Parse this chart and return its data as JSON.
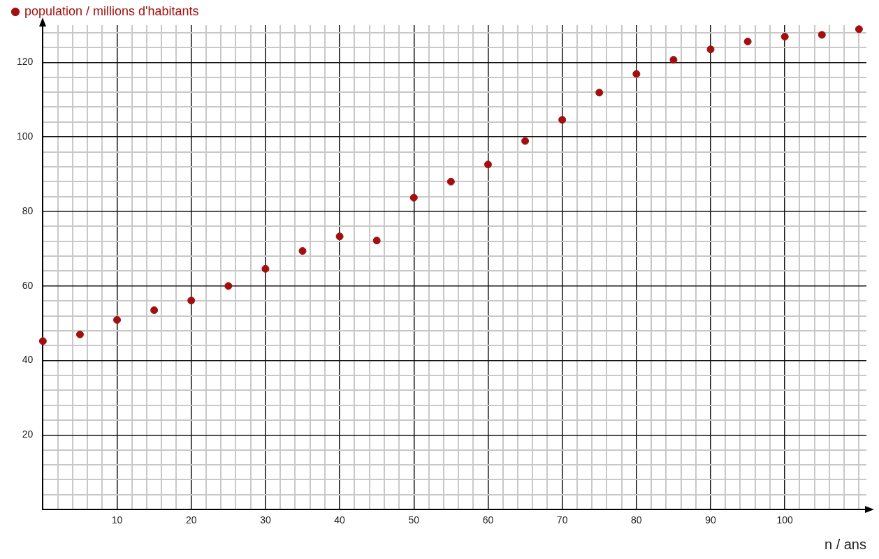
{
  "chart_data": {
    "type": "scatter",
    "xlabel": "n / ans",
    "legend": "top left",
    "grid": true,
    "marker": "circle",
    "x": [
      0,
      5,
      10,
      15,
      20,
      25,
      30,
      35,
      40,
      45,
      50,
      55,
      60,
      65,
      70,
      75,
      80,
      85,
      90,
      95,
      100,
      105,
      110
    ],
    "series": [
      {
        "name": "population / millions d'habitants",
        "color": "#a30f0f",
        "values": [
          45.2,
          47.0,
          50.9,
          53.5,
          56.1,
          60.0,
          64.6,
          69.4,
          73.3,
          72.2,
          83.7,
          88.0,
          92.6,
          98.9,
          104.6,
          111.9,
          116.9,
          120.7,
          123.5,
          125.6,
          126.9,
          127.4,
          128.9
        ]
      }
    ],
    "xlim": [
      0,
      111
    ],
    "ylim": [
      0,
      130
    ],
    "xticks": [
      {
        "value": 0,
        "label": null
      },
      {
        "value": 2,
        "label": null
      },
      {
        "value": 4,
        "label": null
      },
      {
        "value": 6,
        "label": null
      },
      {
        "value": 8,
        "label": null
      },
      10,
      {
        "value": 12,
        "label": null
      },
      {
        "value": 14,
        "label": null
      },
      {
        "value": 16,
        "label": null
      },
      {
        "value": 18,
        "label": null
      },
      20,
      {
        "value": 22,
        "label": null
      },
      {
        "value": 24,
        "label": null
      },
      {
        "value": 26,
        "label": null
      },
      {
        "value": 28,
        "label": null
      },
      30,
      {
        "value": 32,
        "label": null
      },
      {
        "value": 34,
        "label": null
      },
      {
        "value": 36,
        "label": null
      },
      {
        "value": 38,
        "label": null
      },
      40,
      {
        "value": 42,
        "label": null
      },
      {
        "value": 44,
        "label": null
      },
      {
        "value": 46,
        "label": null
      },
      {
        "value": 48,
        "label": null
      },
      50,
      {
        "value": 52,
        "label": null
      },
      {
        "value": 54,
        "label": null
      },
      {
        "value": 56,
        "label": null
      },
      {
        "value": 58,
        "label": null
      },
      60,
      {
        "value": 62,
        "label": null
      },
      {
        "value": 64,
        "label": null
      },
      {
        "value": 66,
        "label": null
      },
      {
        "value": 68,
        "label": null
      },
      70,
      {
        "value": 72,
        "label": null
      },
      {
        "value": 74,
        "label": null
      },
      {
        "value": 76,
        "label": null
      },
      {
        "value": 78,
        "label": null
      },
      80,
      {
        "value": 82,
        "label": null
      },
      {
        "value": 84,
        "label": null
      },
      {
        "value": 86,
        "label": null
      },
      {
        "value": 88,
        "label": null
      },
      90,
      {
        "value": 92,
        "label": null
      },
      {
        "value": 94,
        "label": null
      },
      {
        "value": 96,
        "label": null
      },
      {
        "value": 98,
        "label": null
      },
      100,
      {
        "value": 102,
        "label": null
      },
      {
        "value": 104,
        "label": null
      },
      {
        "value": 106,
        "label": null
      },
      {
        "value": 108,
        "label": null
      },
      {
        "value": 110,
        "label": null
      }
    ],
    "yticks": [
      {
        "value": 0,
        "label": null
      },
      {
        "value": 4,
        "label": null
      },
      {
        "value": 8,
        "label": null
      },
      {
        "value": 12,
        "label": null
      },
      {
        "value": 16,
        "label": null
      },
      20,
      {
        "value": 24,
        "label": null
      },
      {
        "value": 28,
        "label": null
      },
      {
        "value": 32,
        "label": null
      },
      {
        "value": 36,
        "label": null
      },
      40,
      {
        "value": 44,
        "label": null
      },
      {
        "value": 48,
        "label": null
      },
      {
        "value": 52,
        "label": null
      },
      {
        "value": 56,
        "label": null
      },
      60,
      {
        "value": 64,
        "label": null
      },
      {
        "value": 68,
        "label": null
      },
      {
        "value": 72,
        "label": null
      },
      {
        "value": 76,
        "label": null
      },
      80,
      {
        "value": 84,
        "label": null
      },
      {
        "value": 88,
        "label": null
      },
      {
        "value": 92,
        "label": null
      },
      {
        "value": 96,
        "label": null
      },
      100,
      {
        "value": 104,
        "label": null
      },
      {
        "value": 108,
        "label": null
      },
      {
        "value": 112,
        "label": null
      },
      {
        "value": 116,
        "label": null
      },
      120,
      {
        "value": 124,
        "label": null
      },
      {
        "value": 128,
        "label": null
      }
    ]
  }
}
